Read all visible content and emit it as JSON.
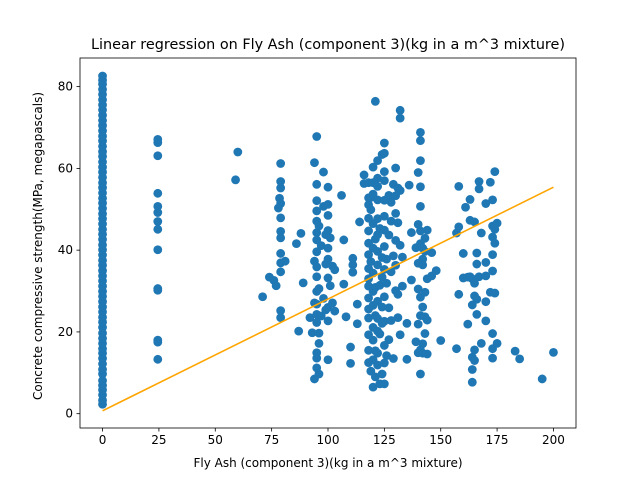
{
  "chart_data": {
    "type": "scatter",
    "title": "Linear regression on Fly Ash (component 3)(kg in a m^3 mixture)",
    "xlabel": "Fly Ash (component 3)(kg in a m^3 mixture)",
    "ylabel": "Concrete compressive strength(MPa, megapascals)",
    "xlim": [
      -10,
      210
    ],
    "ylim": [
      -3.5,
      87
    ],
    "xticks": [
      0,
      25,
      50,
      75,
      100,
      125,
      150,
      175,
      200
    ],
    "yticks": [
      0,
      20,
      40,
      60,
      80
    ],
    "grid": false,
    "colors": {
      "points": "#1f77b4",
      "regression": "#ffa500"
    },
    "regression_line": {
      "x": [
        0,
        200
      ],
      "y": [
        0.7,
        55.4
      ]
    },
    "points": [
      [
        0,
        2.3
      ],
      [
        0,
        3.3
      ],
      [
        0,
        4.6
      ],
      [
        0,
        5.8
      ],
      [
        0,
        6.9
      ],
      [
        0,
        8.1
      ],
      [
        0,
        9.7
      ],
      [
        0,
        10.8
      ],
      [
        0,
        12.2
      ],
      [
        0,
        13.5
      ],
      [
        0,
        14.8
      ],
      [
        0,
        15.9
      ],
      [
        0,
        17.2
      ],
      [
        0,
        18.4
      ],
      [
        0,
        19.7
      ],
      [
        0,
        21.1
      ],
      [
        0,
        22.4
      ],
      [
        0,
        23.6
      ],
      [
        0,
        24.9
      ],
      [
        0,
        26.1
      ],
      [
        0,
        27.4
      ],
      [
        0,
        28.7
      ],
      [
        0,
        29.9
      ],
      [
        0,
        31.2
      ],
      [
        0,
        32.5
      ],
      [
        0,
        33.7
      ],
      [
        0,
        35.0
      ],
      [
        0,
        36.3
      ],
      [
        0,
        37.5
      ],
      [
        0,
        38.8
      ],
      [
        0,
        40.1
      ],
      [
        0,
        41.3
      ],
      [
        0,
        42.6
      ],
      [
        0,
        43.9
      ],
      [
        0,
        45.1
      ],
      [
        0,
        46.4
      ],
      [
        0,
        47.7
      ],
      [
        0,
        48.9
      ],
      [
        0,
        50.2
      ],
      [
        0,
        51.5
      ],
      [
        0,
        52.7
      ],
      [
        0,
        54.0
      ],
      [
        0,
        55.3
      ],
      [
        0,
        56.5
      ],
      [
        0,
        57.8
      ],
      [
        0,
        59.1
      ],
      [
        0,
        60.3
      ],
      [
        0,
        61.6
      ],
      [
        0,
        62.9
      ],
      [
        0,
        64.1
      ],
      [
        0,
        65.4
      ],
      [
        0,
        66.7
      ],
      [
        0,
        67.9
      ],
      [
        0,
        69.2
      ],
      [
        0,
        70.5
      ],
      [
        0,
        71.7
      ],
      [
        0,
        73.0
      ],
      [
        0,
        74.3
      ],
      [
        0,
        75.5
      ],
      [
        0,
        76.8
      ],
      [
        0,
        78.1
      ],
      [
        0,
        79.3
      ],
      [
        0,
        80.6
      ],
      [
        0,
        81.6
      ],
      [
        0,
        82.6
      ],
      [
        24.5,
        13.3
      ],
      [
        24.5,
        17.5
      ],
      [
        24.5,
        18.0
      ],
      [
        24.5,
        30.2
      ],
      [
        24.5,
        30.6
      ],
      [
        24.5,
        40.1
      ],
      [
        24.5,
        45.1
      ],
      [
        24.5,
        47.0
      ],
      [
        24.5,
        49.2
      ],
      [
        24.5,
        50.7
      ],
      [
        24.5,
        53.9
      ],
      [
        24.5,
        63.1
      ],
      [
        24.5,
        66.3
      ],
      [
        24.5,
        67.1
      ],
      [
        59,
        57.2
      ],
      [
        60,
        64.0
      ],
      [
        71,
        28.6
      ],
      [
        74,
        33.4
      ],
      [
        76,
        32.6
      ],
      [
        77,
        31.3
      ],
      [
        78,
        50.3
      ],
      [
        78.5,
        52.7
      ],
      [
        79,
        23.5
      ],
      [
        79,
        25.2
      ],
      [
        79,
        34.7
      ],
      [
        79,
        36.9
      ],
      [
        79,
        39.2
      ],
      [
        79,
        43.0
      ],
      [
        79,
        44.6
      ],
      [
        79,
        47.9
      ],
      [
        79,
        51.4
      ],
      [
        79,
        55.2
      ],
      [
        79,
        56.8
      ],
      [
        79,
        61.2
      ],
      [
        81,
        37.3
      ],
      [
        86,
        41.6
      ],
      [
        87,
        20.2
      ],
      [
        88,
        44.1
      ],
      [
        89,
        32.0
      ],
      [
        92,
        23.5
      ],
      [
        93,
        19.8
      ],
      [
        94,
        8.5
      ],
      [
        94,
        27.1
      ],
      [
        94,
        37.3
      ],
      [
        94,
        61.4
      ],
      [
        95,
        11.2
      ],
      [
        95,
        13.6
      ],
      [
        95,
        14.9
      ],
      [
        95,
        22.3
      ],
      [
        95,
        24.3
      ],
      [
        95,
        26.8
      ],
      [
        95,
        29.9
      ],
      [
        95,
        33.5
      ],
      [
        95,
        35.9
      ],
      [
        95,
        39.6
      ],
      [
        95,
        42.5
      ],
      [
        95,
        44.3
      ],
      [
        95,
        47.1
      ],
      [
        95,
        49.6
      ],
      [
        95,
        52.1
      ],
      [
        95,
        56.1
      ],
      [
        95,
        67.8
      ],
      [
        96,
        9.7
      ],
      [
        96,
        17.2
      ],
      [
        96,
        19.7
      ],
      [
        96,
        30.6
      ],
      [
        96,
        45.9
      ],
      [
        97,
        23.9
      ],
      [
        97,
        41.1
      ],
      [
        98,
        28.2
      ],
      [
        98,
        50.7
      ],
      [
        98,
        59.1
      ],
      [
        99,
        25.4
      ],
      [
        99,
        36.6
      ],
      [
        99,
        43.8
      ],
      [
        100,
        13.2
      ],
      [
        100,
        22.7
      ],
      [
        100,
        26.0
      ],
      [
        100,
        33.2
      ],
      [
        100,
        37.8
      ],
      [
        100,
        40.5
      ],
      [
        100,
        44.8
      ],
      [
        100,
        48.5
      ],
      [
        100,
        51.2
      ],
      [
        100,
        55.4
      ],
      [
        101,
        31.3
      ],
      [
        101,
        43.0
      ],
      [
        102,
        27.1
      ],
      [
        102,
        36.1
      ],
      [
        103,
        25.1
      ],
      [
        103,
        35.2
      ],
      [
        106,
        53.4
      ],
      [
        107,
        42.5
      ],
      [
        107,
        31.7
      ],
      [
        108,
        23.7
      ],
      [
        110,
        12.3
      ],
      [
        110,
        16.3
      ],
      [
        111,
        34.6
      ],
      [
        111,
        36.4
      ],
      [
        111,
        38.0
      ],
      [
        113,
        22.0
      ],
      [
        113,
        26.8
      ],
      [
        114,
        46.9
      ],
      [
        116,
        56.3
      ],
      [
        116,
        58.4
      ],
      [
        118,
        12.5
      ],
      [
        118,
        15.5
      ],
      [
        118,
        19.3
      ],
      [
        118,
        23.4
      ],
      [
        118,
        25.6
      ],
      [
        118,
        28.3
      ],
      [
        118,
        31.2
      ],
      [
        118,
        33.0
      ],
      [
        118,
        35.5
      ],
      [
        118,
        38.9
      ],
      [
        118,
        41.7
      ],
      [
        118,
        44.7
      ],
      [
        118,
        47.8
      ],
      [
        118,
        51.1
      ],
      [
        118,
        52.8
      ],
      [
        118,
        56.5
      ],
      [
        119,
        10.4
      ],
      [
        119,
        37.2
      ],
      [
        119,
        49.9
      ],
      [
        119,
        52.9
      ],
      [
        120,
        6.5
      ],
      [
        120,
        13.2
      ],
      [
        120,
        18.0
      ],
      [
        120,
        21.1
      ],
      [
        120,
        26.5
      ],
      [
        120,
        29.9
      ],
      [
        120,
        34.4
      ],
      [
        120,
        40.5
      ],
      [
        120,
        46.5
      ],
      [
        120,
        53.7
      ],
      [
        120,
        56.5
      ],
      [
        120,
        60.3
      ],
      [
        121,
        9.0
      ],
      [
        121,
        15.4
      ],
      [
        121,
        24.0
      ],
      [
        121,
        30.9
      ],
      [
        121,
        42.7
      ],
      [
        121,
        76.4
      ],
      [
        122,
        11.9
      ],
      [
        122,
        14.8
      ],
      [
        122,
        20.2
      ],
      [
        122,
        23.3
      ],
      [
        122,
        27.5
      ],
      [
        122,
        36.4
      ],
      [
        122,
        39.7
      ],
      [
        122,
        43.8
      ],
      [
        122,
        47.7
      ],
      [
        122,
        52.3
      ],
      [
        122,
        55.6
      ],
      [
        122,
        57.6
      ],
      [
        122,
        61.9
      ],
      [
        123,
        7.3
      ],
      [
        123,
        19.5
      ],
      [
        123,
        31.4
      ],
      [
        123,
        45.3
      ],
      [
        124,
        9.7
      ],
      [
        124,
        22.1
      ],
      [
        124,
        26.1
      ],
      [
        124,
        33.4
      ],
      [
        124,
        38.2
      ],
      [
        124,
        63.4
      ],
      [
        125,
        7.3
      ],
      [
        125,
        12.4
      ],
      [
        125,
        16.7
      ],
      [
        125,
        22.6
      ],
      [
        125,
        28.6
      ],
      [
        125,
        35.3
      ],
      [
        125,
        40.9
      ],
      [
        125,
        44.9
      ],
      [
        125,
        48.3
      ],
      [
        125,
        52.2
      ],
      [
        125,
        57.0
      ],
      [
        125,
        59.2
      ],
      [
        125,
        63.7
      ],
      [
        125,
        66.2
      ],
      [
        126,
        14.2
      ],
      [
        126,
        31.9
      ],
      [
        126,
        37.8
      ],
      [
        127,
        18.1
      ],
      [
        127,
        25.9
      ],
      [
        127,
        43.7
      ],
      [
        127,
        53.4
      ],
      [
        128,
        22.8
      ],
      [
        128,
        34.7
      ],
      [
        128,
        47.1
      ],
      [
        128,
        51.7
      ],
      [
        129,
        13.5
      ],
      [
        129,
        38.6
      ],
      [
        129,
        56.1
      ],
      [
        130,
        30.1
      ],
      [
        130,
        36.3
      ],
      [
        130,
        42.4
      ],
      [
        130,
        49.0
      ],
      [
        130,
        53.3
      ],
      [
        130,
        60.1
      ],
      [
        131,
        23.5
      ],
      [
        131,
        29.2
      ],
      [
        131,
        46.7
      ],
      [
        131,
        55.2
      ],
      [
        132,
        19.3
      ],
      [
        132,
        41.2
      ],
      [
        132,
        54.6
      ],
      [
        132,
        72.3
      ],
      [
        132,
        74.2
      ],
      [
        133,
        31.2
      ],
      [
        133,
        38.3
      ],
      [
        135,
        13.3
      ],
      [
        135,
        22.1
      ],
      [
        136,
        55.9
      ],
      [
        137,
        32.7
      ],
      [
        137,
        44.3
      ],
      [
        139,
        17.6
      ],
      [
        139,
        40.6
      ],
      [
        140,
        14.9
      ],
      [
        140,
        21.9
      ],
      [
        140,
        30.5
      ],
      [
        140,
        36.8
      ],
      [
        140,
        46.3
      ],
      [
        140,
        59.0
      ],
      [
        141,
        9.7
      ],
      [
        141,
        15.6
      ],
      [
        141,
        24.0
      ],
      [
        141,
        28.5
      ],
      [
        141,
        41.6
      ],
      [
        141,
        44.7
      ],
      [
        141,
        50.7
      ],
      [
        141,
        55.5
      ],
      [
        141,
        61.9
      ],
      [
        141,
        66.8
      ],
      [
        141,
        68.8
      ],
      [
        142,
        14.8
      ],
      [
        142,
        17.1
      ],
      [
        142,
        26.1
      ],
      [
        142,
        36.4
      ],
      [
        142,
        37.8
      ],
      [
        142,
        40.5
      ],
      [
        143,
        19.6
      ],
      [
        143,
        23.7
      ],
      [
        143,
        29.7
      ],
      [
        143,
        39.7
      ],
      [
        143,
        42.9
      ],
      [
        144,
        14.6
      ],
      [
        144,
        22.9
      ],
      [
        144,
        33.0
      ],
      [
        144,
        44.9
      ],
      [
        146,
        33.7
      ],
      [
        146,
        39.4
      ],
      [
        148,
        35.0
      ],
      [
        150,
        17.9
      ],
      [
        157,
        15.9
      ],
      [
        157,
        44.2
      ],
      [
        158,
        29.2
      ],
      [
        158,
        45.7
      ],
      [
        158,
        55.6
      ],
      [
        160,
        33.2
      ],
      [
        160,
        39.2
      ],
      [
        161,
        50.5
      ],
      [
        162,
        21.9
      ],
      [
        162,
        33.4
      ],
      [
        163,
        47.3
      ],
      [
        163,
        33.5
      ],
      [
        163,
        52.4
      ],
      [
        164,
        10.8
      ],
      [
        164,
        13.8
      ],
      [
        164,
        26.6
      ],
      [
        164,
        33.0
      ],
      [
        164,
        7.7
      ],
      [
        165,
        13.0
      ],
      [
        165,
        28.8
      ],
      [
        165,
        31.9
      ],
      [
        165,
        15.6
      ],
      [
        165,
        46.9
      ],
      [
        166,
        24.3
      ],
      [
        166,
        28.0
      ],
      [
        166,
        36.6
      ],
      [
        166,
        39.3
      ],
      [
        167,
        33.5
      ],
      [
        167,
        55.0
      ],
      [
        167,
        56.8
      ],
      [
        168,
        17.2
      ],
      [
        168,
        44.2
      ],
      [
        170,
        22.7
      ],
      [
        170,
        27.4
      ],
      [
        170,
        33.7
      ],
      [
        170,
        37.0
      ],
      [
        170,
        51.4
      ],
      [
        172,
        29.7
      ],
      [
        172,
        56.6
      ],
      [
        173,
        13.6
      ],
      [
        173,
        15.9
      ],
      [
        173,
        19.6
      ],
      [
        173,
        34.9
      ],
      [
        173,
        38.9
      ],
      [
        173,
        43.2
      ],
      [
        173,
        45.9
      ],
      [
        173,
        52.3
      ],
      [
        174,
        29.5
      ],
      [
        174,
        41.7
      ],
      [
        174,
        45.1
      ],
      [
        174,
        59.2
      ],
      [
        175,
        17.2
      ],
      [
        175,
        46.6
      ],
      [
        183,
        15.3
      ],
      [
        185,
        13.4
      ],
      [
        195,
        8.5
      ],
      [
        200,
        15.0
      ]
    ]
  }
}
